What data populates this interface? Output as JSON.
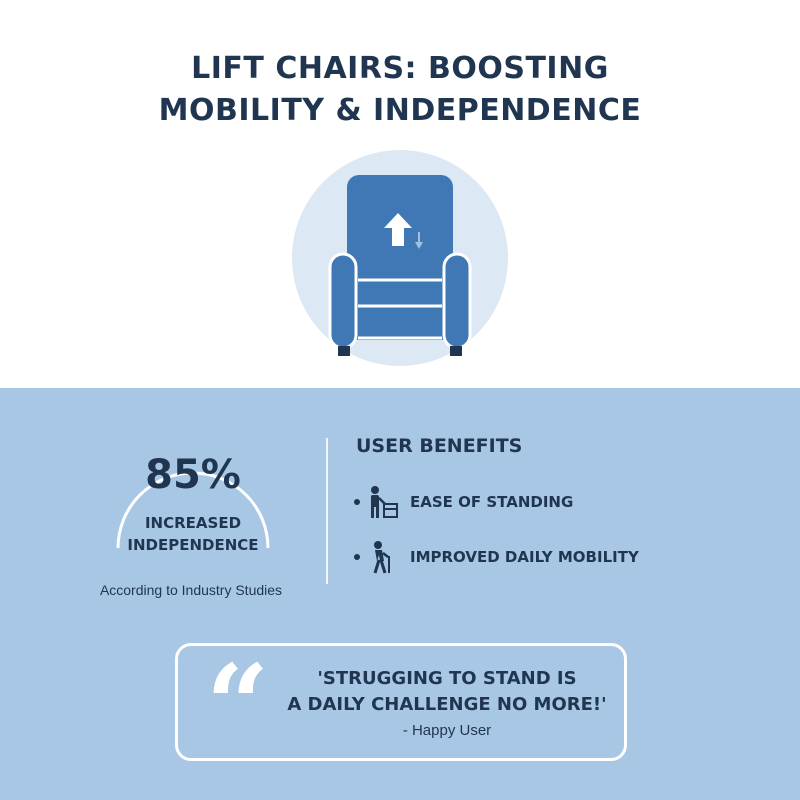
{
  "header": {
    "title_line1": "LIFT CHAIRS: BOOSTING",
    "title_line2": "MOBILITY & INDEPENDENCE"
  },
  "hero": {
    "icon": "lift-chair-icon",
    "colors": {
      "circle": "#dce9f5",
      "chair": "#3f78b5"
    }
  },
  "stat": {
    "value": "85%",
    "label_line1": "INCREASED",
    "label_line2": "INDEPENDENCE",
    "source": "According to Industry Studies"
  },
  "benefits": {
    "title": "USER BENEFITS",
    "items": [
      {
        "label": "EASE OF STANDING",
        "icon": "person-standing-icon"
      },
      {
        "label": "IMPROVED DAILY MOBILITY",
        "icon": "person-with-cane-icon"
      }
    ]
  },
  "quote": {
    "line1": "'STRUGGING TO STAND IS",
    "line2": "A DAILY CHALLENGE NO MORE!'",
    "author": "- Happy User"
  },
  "colors": {
    "text": "#1f3550",
    "bottom_bg": "#a7c7e4",
    "accent": "#3f78b5",
    "white": "#ffffff"
  }
}
